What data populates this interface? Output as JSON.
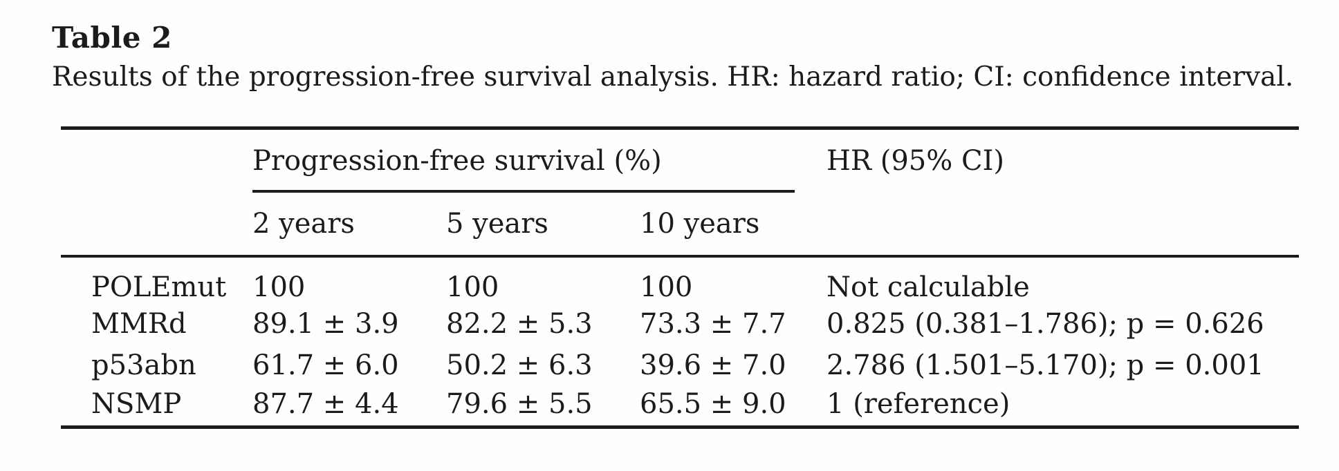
{
  "page": {
    "title": "Table 2",
    "caption": "Results of the progression-free survival analysis. HR: hazard ratio; CI: confidence interval."
  },
  "table": {
    "group_header": "Progression-free survival (%)",
    "hr_header": "HR (95% CI)",
    "sub_headers": [
      "2 years",
      "5 years",
      "10 years"
    ],
    "rows": [
      {
        "label": "POLEmut",
        "y2": "100",
        "y5": "100",
        "y10": "100",
        "hr": "Not calculable"
      },
      {
        "label": "MMRd",
        "y2": "89.1 ± 3.9",
        "y5": "82.2 ± 5.3",
        "y10": "73.3 ± 7.7",
        "hr": "0.825 (0.381–1.786); p = 0.626"
      },
      {
        "label": "p53abn",
        "y2": "61.7 ± 6.0",
        "y5": "50.2 ± 6.3",
        "y10": "39.6 ± 7.0",
        "hr": "2.786 (1.501–5.170); p = 0.001"
      },
      {
        "label": "NSMP",
        "y2": "87.7 ± 4.4",
        "y5": "79.6 ± 5.5",
        "y10": "65.5 ± 9.0",
        "hr": "1 (reference)"
      }
    ]
  }
}
